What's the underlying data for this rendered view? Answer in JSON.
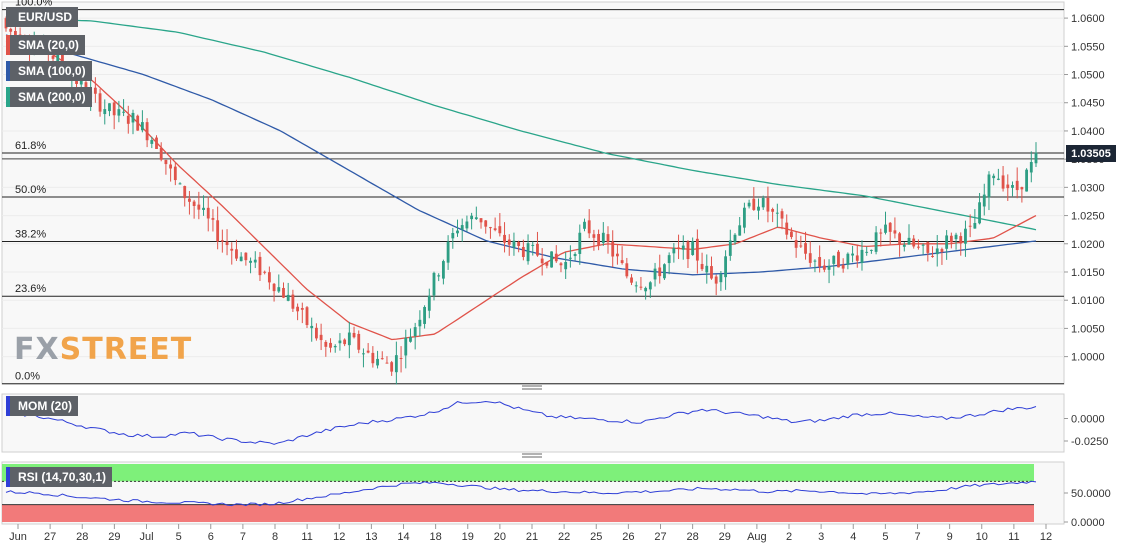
{
  "legend": {
    "symbol": "EUR/USD",
    "sma20": "SMA (20,0)",
    "sma100": "SMA (100,0)",
    "sma200": "SMA (200,0)",
    "mom": "MOM (20)",
    "rsi": "RSI (14,70,30,1)"
  },
  "watermark": {
    "part1": "FX",
    "part2": "STREET"
  },
  "last_price": "1.03505",
  "colors": {
    "up": "#2e9e84",
    "down": "#e0534a",
    "sma20": "#e0534a",
    "sma100": "#2f5aa8",
    "sma200": "#2aa58a",
    "mom": "#2f3fd6",
    "rsi": "#2f3fd6",
    "rsi_over": "#7ef07a",
    "rsi_under": "#f27a7a",
    "badge": "#1c2635"
  },
  "chart_data": {
    "type": "candlestick",
    "ylim": [
      0.9955,
      1.0625
    ],
    "y_ticks": [
      "1.0600",
      "1.0550",
      "1.0500",
      "1.0450",
      "1.0400",
      "1.0350",
      "1.0300",
      "1.0250",
      "1.0200",
      "1.0150",
      "1.0100",
      "1.0050",
      "1.0000"
    ],
    "x_ticks": [
      "Jun",
      "27",
      "28",
      "29",
      "Jul",
      "5",
      "6",
      "7",
      "8",
      "11",
      "12",
      "13",
      "14",
      "18",
      "19",
      "20",
      "21",
      "22",
      "25",
      "26",
      "27",
      "28",
      "29",
      "Aug",
      "2",
      "3",
      "4",
      "5",
      "7",
      "9",
      "10",
      "11",
      "12"
    ],
    "fibonacci": [
      {
        "label": "100.0%",
        "value": 1.0615
      },
      {
        "label": "61.8%",
        "value": 1.0361
      },
      {
        "label": "50.0%",
        "value": 1.0283
      },
      {
        "label": "38.2%",
        "value": 1.0204
      },
      {
        "label": "23.6%",
        "value": 1.0107
      },
      {
        "label": "0.0%",
        "value": 0.9952
      }
    ],
    "close_anchors": [
      1.058,
      1.056,
      1.054,
      1.05,
      1.046,
      1.043,
      1.042,
      1.038,
      1.03,
      1.026,
      1.021,
      1.0175,
      1.015,
      1.011,
      1.006,
      1.001,
      1.003,
      1.0,
      0.9985,
      1.005,
      1.014,
      1.023,
      1.025,
      1.021,
      1.019,
      1.018,
      1.016,
      1.023,
      1.02,
      1.014,
      1.013,
      1.018,
      1.019,
      1.013,
      1.023,
      1.028,
      1.024,
      1.019,
      1.016,
      1.017,
      1.019,
      1.022,
      1.02,
      1.018,
      1.021,
      1.022,
      1.033,
      1.029,
      1.035
    ],
    "sma20_anchors": [
      1.056,
      1.054,
      1.049,
      1.042,
      1.034,
      1.027,
      1.0195,
      1.012,
      1.006,
      1.003,
      1.004,
      1.009,
      1.014,
      1.0185,
      1.02,
      1.0195,
      1.019,
      1.02,
      1.023,
      1.021,
      1.0195,
      1.02,
      1.02,
      1.021,
      1.025
    ],
    "sma100_anchors": [
      1.057,
      1.0535,
      1.05,
      1.0455,
      1.04,
      1.033,
      1.026,
      1.0205,
      1.0175,
      1.0155,
      1.0145,
      1.015,
      1.016,
      1.0175,
      1.019,
      1.0205
    ],
    "sma200_anchors": [
      1.06,
      1.0595,
      1.0575,
      1.054,
      1.0495,
      1.0445,
      1.04,
      1.036,
      1.033,
      1.0305,
      1.0285,
      1.0255,
      1.0225
    ],
    "mom": {
      "ylim": [
        -0.035,
        0.025
      ],
      "y_ticks": [
        "0.0000",
        "-0.0250"
      ],
      "anchors": [
        0.006,
        0.003,
        -0.004,
        -0.012,
        -0.018,
        -0.02,
        -0.016,
        -0.022,
        -0.026,
        -0.028,
        -0.018,
        -0.01,
        -0.004,
        0.0,
        0.006,
        0.018,
        0.02,
        0.01,
        0.002,
        0.0,
        -0.002,
        -0.004,
        0.004,
        0.01,
        0.006,
        0.002,
        -0.004,
        -0.002,
        0.004,
        0.006,
        0.002,
        0.0,
        0.004,
        0.01,
        0.013
      ]
    },
    "rsi": {
      "ylim": [
        0,
        100
      ],
      "y_ticks": [
        "50.0000",
        "0.0000"
      ],
      "overbought": 70,
      "oversold": 30,
      "anchors": [
        52,
        50,
        44,
        40,
        36,
        34,
        32,
        30,
        31,
        40,
        48,
        58,
        66,
        68,
        62,
        56,
        54,
        52,
        50,
        52,
        54,
        58,
        56,
        52,
        54,
        52,
        48,
        50,
        54,
        62,
        66,
        70
      ]
    }
  }
}
